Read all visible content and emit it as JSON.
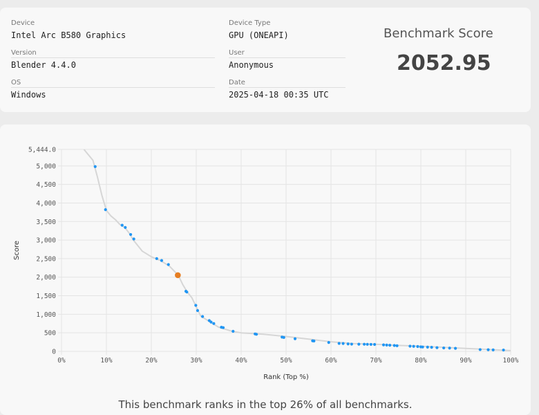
{
  "info": {
    "device": {
      "label": "Device",
      "value": "Intel Arc B580 Graphics"
    },
    "version": {
      "label": "Version",
      "value": "Blender 4.4.0"
    },
    "os": {
      "label": "OS",
      "value": "Windows"
    },
    "device_type": {
      "label": "Device Type",
      "value": "GPU (ONEAPI)"
    },
    "user": {
      "label": "User",
      "value": "Anonymous"
    },
    "date": {
      "label": "Date",
      "value": "2025-04-18 00:35 UTC"
    }
  },
  "score": {
    "title": "Benchmark Score",
    "value": "2052.95"
  },
  "footer_text": "This benchmark ranks in the top 26% of all benchmarks.",
  "colors": {
    "point": "#2196f3",
    "highlight": "#e67e22",
    "curve": "#d6d6d6",
    "grid": "#e4e4e4"
  },
  "chart_data": {
    "type": "scatter",
    "xlabel": "Rank (Top %)",
    "ylabel": "Score",
    "xlim": [
      0,
      100
    ],
    "ylim": [
      0,
      5444
    ],
    "x_ticks": [
      "0%",
      "10%",
      "20%",
      "30%",
      "40%",
      "50%",
      "60%",
      "70%",
      "80%",
      "90%",
      "100%"
    ],
    "y_ticks": [
      "0",
      "500",
      "1,000",
      "1,500",
      "2,000",
      "2,500",
      "3,000",
      "3,500",
      "4,000",
      "4,500",
      "5,000",
      "5,444.0"
    ],
    "curve": {
      "x": [
        5,
        7,
        8,
        9,
        10,
        11,
        12,
        13,
        14,
        15,
        16,
        18,
        20,
        22,
        24,
        26,
        27,
        28,
        29,
        30,
        31,
        33,
        35,
        38,
        40,
        45,
        50,
        55,
        60,
        65,
        70,
        75,
        80,
        85,
        90,
        95,
        100
      ],
      "y": [
        5444,
        5150,
        4700,
        4200,
        3800,
        3650,
        3550,
        3420,
        3350,
        3200,
        3000,
        2700,
        2550,
        2450,
        2300,
        2053,
        1800,
        1600,
        1450,
        1200,
        950,
        800,
        650,
        540,
        500,
        460,
        400,
        330,
        260,
        210,
        190,
        160,
        140,
        110,
        80,
        50,
        20
      ]
    },
    "points": {
      "x": [
        7.5,
        9.8,
        13.5,
        14.2,
        15.4,
        16.1,
        21.2,
        22.3,
        23.8,
        27.7,
        27.9,
        29.9,
        30.3,
        31.4,
        32.9,
        33.3,
        33.9,
        35.6,
        36.0,
        38.2,
        43.1,
        43.4,
        49.1,
        49.5,
        52.0,
        55.9,
        56.2,
        59.5,
        61.8,
        62.7,
        63.8,
        64.6,
        66.2,
        67.4,
        68.1,
        68.9,
        69.7,
        71.7,
        72.4,
        73.1,
        74.1,
        74.7,
        77.6,
        78.4,
        79.3,
        80.0,
        80.4,
        81.5,
        82.4,
        83.6,
        85.1,
        86.4,
        87.7,
        93.2,
        95.0,
        96.1,
        98.4
      ],
      "y": [
        4980,
        3820,
        3400,
        3340,
        3150,
        3030,
        2500,
        2450,
        2340,
        1620,
        1600,
        1240,
        1100,
        940,
        830,
        790,
        750,
        650,
        640,
        540,
        470,
        460,
        385,
        375,
        340,
        285,
        280,
        240,
        215,
        212,
        200,
        195,
        193,
        192,
        190,
        188,
        186,
        175,
        170,
        165,
        158,
        152,
        140,
        136,
        130,
        122,
        118,
        114,
        110,
        100,
        92,
        88,
        82,
        48,
        44,
        40,
        36
      ]
    },
    "highlight": {
      "x": 25.9,
      "y": 2052.95
    }
  }
}
